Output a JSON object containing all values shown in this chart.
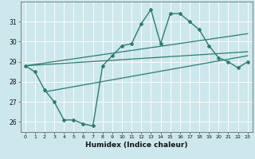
{
  "title": "",
  "xlabel": "Humidex (Indice chaleur)",
  "background_color": "#cce8ec",
  "line_color": "#2a7d6e",
  "grid_color": "#ffffff",
  "xlim": [
    -0.5,
    23.5
  ],
  "ylim": [
    25.5,
    32.0
  ],
  "xticks": [
    0,
    1,
    2,
    3,
    4,
    5,
    6,
    7,
    8,
    9,
    10,
    11,
    12,
    13,
    14,
    15,
    16,
    17,
    18,
    19,
    20,
    21,
    22,
    23
  ],
  "yticks": [
    26,
    27,
    28,
    29,
    30,
    31
  ],
  "curve1_x": [
    0,
    1,
    2,
    3,
    4,
    5,
    6,
    7,
    8,
    9,
    10,
    11,
    12,
    13,
    14,
    15,
    16,
    17,
    18,
    19,
    20,
    21,
    22,
    23
  ],
  "curve1_y": [
    28.8,
    28.5,
    27.6,
    27.0,
    26.1,
    26.1,
    25.9,
    25.8,
    28.8,
    29.3,
    29.8,
    29.9,
    30.9,
    31.6,
    29.9,
    31.4,
    31.4,
    31.0,
    30.6,
    29.8,
    29.2,
    29.0,
    28.7,
    29.0
  ],
  "line1_x": [
    0,
    23
  ],
  "line1_y": [
    28.8,
    30.4
  ],
  "line2_x": [
    0,
    23
  ],
  "line2_y": [
    28.8,
    29.5
  ],
  "line3_x": [
    2,
    23
  ],
  "line3_y": [
    27.5,
    29.3
  ]
}
